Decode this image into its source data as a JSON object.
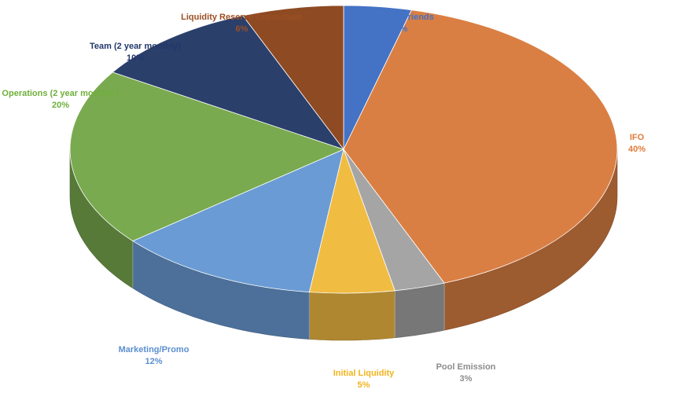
{
  "chart_data": {
    "type": "pie",
    "style": "3d",
    "slices": [
      {
        "label": "Family&Friends",
        "value": 4,
        "value_label": "4%",
        "color": "#4472C4",
        "label_color": "#4472C4"
      },
      {
        "label": "IFO",
        "value": 40,
        "value_label": "40%",
        "color": "#DA7F43",
        "label_color": "#E07B39"
      },
      {
        "label": "Pool Emission",
        "value": 3,
        "value_label": "3%",
        "color": "#A5A5A5",
        "label_color": "#8C8C8C"
      },
      {
        "label": "Initial Liquidity",
        "value": 5,
        "value_label": "5%",
        "color": "#F1BC42",
        "label_color": "#F2B41D"
      },
      {
        "label": "Marketing/Promo",
        "value": 12,
        "value_label": "12%",
        "color": "#6A9BD4",
        "label_color": "#5B8FD0"
      },
      {
        "label": "Operations (2 year monthly )",
        "value": 20,
        "value_label": "20%",
        "color": "#79AA4F",
        "label_color": "#6FAF3A"
      },
      {
        "label": "Team (2 year monthly)",
        "value": 10,
        "value_label": "10%",
        "color": "#2B3F6B",
        "label_color": "#22386A"
      },
      {
        "label": "Liquidity Reserve Crosschain",
        "value": 6,
        "value_label": "6%",
        "color": "#8E4A22",
        "label_color": "#9C4F24"
      }
    ]
  }
}
